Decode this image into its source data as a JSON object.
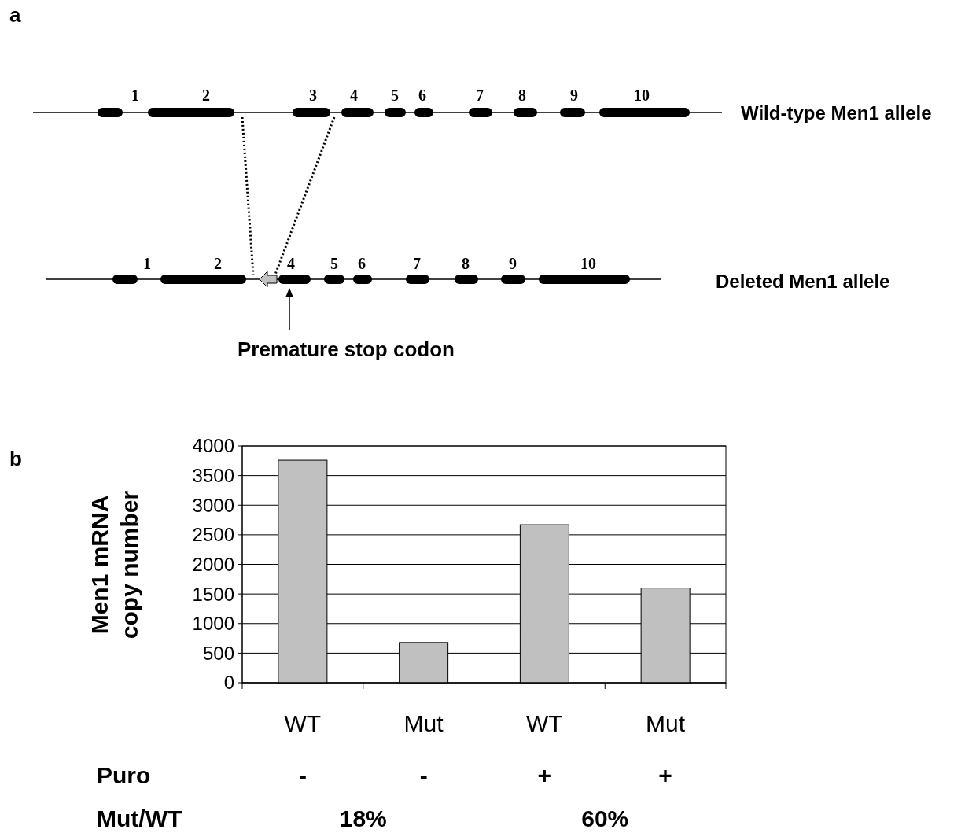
{
  "chart_data": [
    {
      "type": "other",
      "annotations": [
        "a",
        "1",
        "2",
        "3",
        "4",
        "5",
        "6",
        "7",
        "8",
        "9",
        "10",
        "Wild-type Men1 allele",
        "1",
        "2",
        "4",
        "5",
        "6",
        "7",
        "8",
        "9",
        "10",
        "Deleted Men1 allele",
        "Premature stop codon"
      ]
    },
    {
      "type": "bar",
      "categories": [
        "WT",
        "Mut",
        "WT",
        "Mut"
      ],
      "values": [
        3760,
        680,
        2670,
        1600
      ],
      "color": "#c0c0c0",
      "ylabel": "Men1 mRNA copy number",
      "ylim": [
        0,
        4000
      ],
      "yticks": [
        0,
        500,
        1000,
        1500,
        2000,
        2500,
        3000,
        3500,
        4000
      ],
      "grid": "y",
      "annotations": [
        "b",
        "Puro",
        "-",
        "-",
        "+",
        "+",
        "Mut/WT",
        "18%",
        "60%"
      ]
    }
  ]
}
